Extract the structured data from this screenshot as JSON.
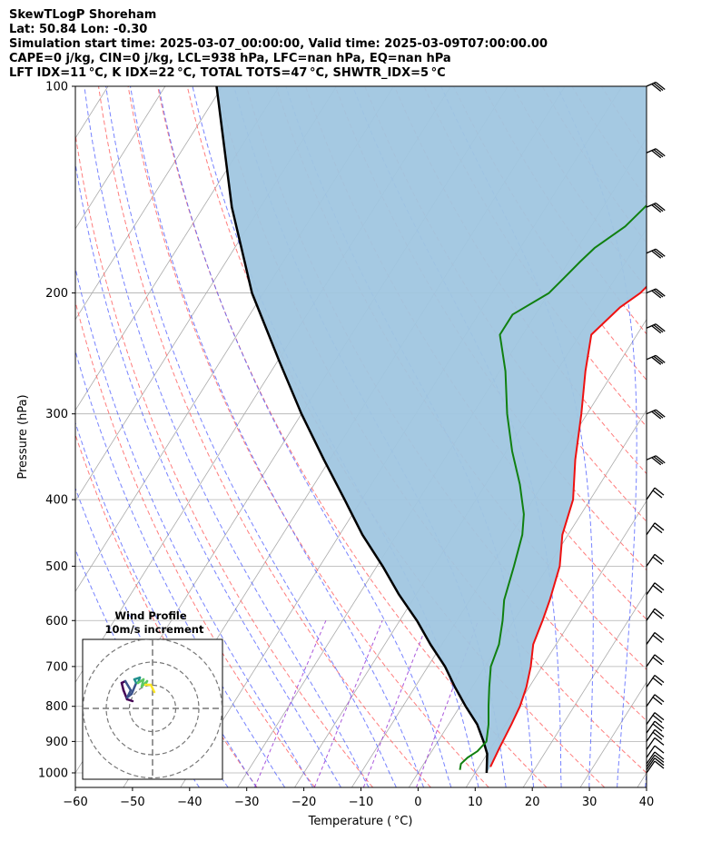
{
  "header": {
    "line1": "SkewTLogP Shoreham",
    "line2": "Lat: 50.84   Lon: -0.30",
    "line3": "Simulation start time: 2025-03-07_00:00:00, Valid time: 2025-03-09T07:00:00.00",
    "line4": "CAPE=0 j/kg, CIN=0 j/kg, LCL=938 hPa, LFC=nan hPa, EQ=nan hPa",
    "line5": "LFT IDX=11 °C, K IDX=22 °C, TOTAL TOTS=47 °C, SHWTR_IDX=5 °C"
  },
  "chart_data": {
    "type": "line",
    "subtype": "skew-T log-P diagram",
    "xlabel": "Temperature ( °C)",
    "ylabel": "Pressure (hPa)",
    "xlim": [
      -60,
      40
    ],
    "ylim": [
      1050,
      100
    ],
    "y_scale": "log",
    "x_ticks": [
      "−60",
      "−50",
      "−40",
      "−30",
      "−20",
      "−10",
      "0",
      "10",
      "20",
      "30",
      "40"
    ],
    "y_ticks": [
      "100",
      "200",
      "300",
      "400",
      "500",
      "600",
      "700",
      "800",
      "900",
      "1000"
    ],
    "series": [
      {
        "role": "temperature",
        "color": "#ee1111",
        "points": [
          [
            12,
            980
          ],
          [
            11.5,
            920
          ],
          [
            11,
            850
          ],
          [
            10.5,
            800
          ],
          [
            9.5,
            750
          ],
          [
            8,
            700
          ],
          [
            6,
            650
          ],
          [
            5,
            600
          ],
          [
            4,
            560
          ],
          [
            2,
            500
          ],
          [
            -1,
            450
          ],
          [
            -3,
            400
          ],
          [
            -7,
            350
          ],
          [
            -11,
            300
          ],
          [
            -15,
            260
          ],
          [
            -18,
            230
          ],
          [
            -16,
            210
          ],
          [
            -14,
            200
          ],
          [
            -12,
            180
          ],
          [
            -11,
            165
          ],
          [
            -13,
            150
          ],
          [
            -15,
            140
          ],
          [
            -17,
            128
          ],
          [
            -20,
            120
          ],
          [
            -21,
            112
          ],
          [
            -22,
            107
          ],
          [
            -23,
            100
          ]
        ]
      },
      {
        "role": "dewpoint",
        "color": "#108010",
        "points": [
          [
            7,
            990
          ],
          [
            6.5,
            970
          ],
          [
            7,
            950
          ],
          [
            8,
            930
          ],
          [
            8.5,
            900
          ],
          [
            7,
            850
          ],
          [
            5,
            800
          ],
          [
            3,
            750
          ],
          [
            1,
            700
          ],
          [
            0,
            650
          ],
          [
            -2,
            600
          ],
          [
            -4,
            560
          ],
          [
            -6,
            500
          ],
          [
            -8,
            450
          ],
          [
            -10,
            420
          ],
          [
            -14,
            380
          ],
          [
            -19,
            340
          ],
          [
            -24,
            300
          ],
          [
            -29,
            260
          ],
          [
            -34,
            230
          ],
          [
            -34,
            215
          ],
          [
            -30,
            200
          ],
          [
            -29,
            190
          ],
          [
            -28,
            180
          ],
          [
            -27,
            172
          ],
          [
            -24,
            160
          ],
          [
            -22,
            145
          ],
          [
            -22,
            130
          ],
          [
            -24,
            115
          ],
          [
            -27,
            100
          ]
        ]
      },
      {
        "role": "parcel profile",
        "color": "#000000",
        "points": [
          [
            12,
            1000
          ],
          [
            10,
            938
          ],
          [
            8,
            900
          ],
          [
            5,
            850
          ],
          [
            1,
            800
          ],
          [
            -3,
            750
          ],
          [
            -7,
            700
          ],
          [
            -12,
            650
          ],
          [
            -17,
            600
          ],
          [
            -23,
            550
          ],
          [
            -29,
            500
          ],
          [
            -36,
            450
          ],
          [
            -43,
            400
          ],
          [
            -51,
            350
          ],
          [
            -60,
            300
          ],
          [
            -70,
            250
          ],
          [
            -82,
            200
          ],
          [
            -95,
            150
          ],
          [
            -111,
            100
          ]
        ]
      }
    ],
    "shading": {
      "region": "between parcel profile and temperature",
      "color": "#a0c6e0"
    },
    "reference_lines": {
      "isotherms": {
        "color": "#aaaaaa",
        "style": "solid"
      },
      "dry_adiabats": {
        "color": "#ff6666",
        "style": "dashed"
      },
      "moist_adiabats": {
        "color": "#4a5aff",
        "style": "dashed"
      },
      "mixing_ratio": {
        "color": "#9b3bd6",
        "style": "dashed"
      }
    },
    "wind_barbs": {
      "color": "#000000",
      "pressures": [
        1000,
        990,
        980,
        970,
        950,
        925,
        900,
        875,
        850,
        800,
        750,
        700,
        650,
        600,
        550,
        500,
        450,
        400,
        350,
        300,
        250,
        225,
        200,
        175,
        150,
        125,
        100
      ]
    },
    "hodograph": {
      "title_line1": "Wind Profile",
      "title_line2": "10m/s increment",
      "ring_count": 3,
      "colormap": [
        "#440154",
        "#3b528b",
        "#21908d",
        "#5dc863",
        "#fde725"
      ]
    }
  }
}
